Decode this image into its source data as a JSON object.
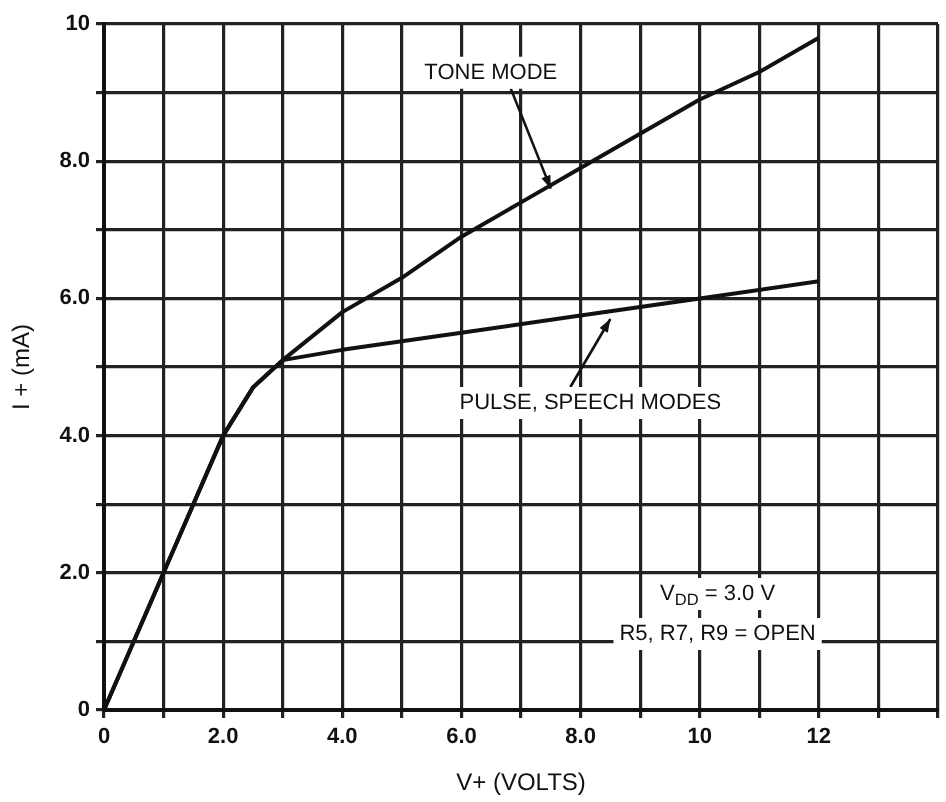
{
  "chart_data": {
    "type": "line",
    "xlabel": "V+ (VOLTS)",
    "ylabel": "I + (mA)",
    "series": [
      {
        "color": "#111111",
        "x": [
          0,
          1,
          2,
          2.5,
          3,
          4,
          5,
          6,
          7,
          8,
          9,
          10,
          11,
          12
        ],
        "values": [
          0,
          2,
          4,
          4.7,
          5.1,
          5.8,
          6.3,
          6.9,
          7.4,
          7.9,
          8.4,
          8.9,
          9.3,
          9.8
        ]
      },
      {
        "color": "#111111",
        "x": [
          0,
          1,
          2,
          2.5,
          3,
          4,
          6,
          8,
          10,
          12
        ],
        "values": [
          0,
          2,
          4,
          4.7,
          5.1,
          5.25,
          5.5,
          5.75,
          6,
          6.25
        ]
      }
    ],
    "xlim": [
      0,
      14
    ],
    "ylim": [
      0,
      10
    ],
    "xticks": [
      0,
      {
        "value": 1,
        "label": null
      },
      {
        "value": 2,
        "label": "2.0"
      },
      {
        "value": 3,
        "label": null
      },
      {
        "value": 4,
        "label": "4.0"
      },
      {
        "value": 5,
        "label": null
      },
      {
        "value": 6,
        "label": "6.0"
      },
      {
        "value": 7,
        "label": null
      },
      {
        "value": 8,
        "label": "8.0"
      },
      {
        "value": 9,
        "label": null
      },
      10,
      {
        "value": 11,
        "label": null
      },
      12,
      {
        "value": 13,
        "label": null
      },
      {
        "value": 14,
        "label": null
      }
    ],
    "yticks": [
      0,
      {
        "value": 1,
        "label": null
      },
      {
        "value": 2,
        "label": "2.0"
      },
      {
        "value": 3,
        "label": null
      },
      {
        "value": 4,
        "label": "4.0"
      },
      {
        "value": 5,
        "label": null
      },
      {
        "value": 6,
        "label": "6.0"
      },
      {
        "value": 7,
        "label": null
      },
      {
        "value": 8,
        "label": "8.0"
      },
      {
        "value": 9,
        "label": null
      },
      10
    ],
    "grid": true,
    "marker": "none",
    "line_style": "solid",
    "annotations": [
      {
        "text": "TONE MODE",
        "x": 7.5,
        "y": 7.6
      },
      {
        "text": "PULSE, SPEECH MODES",
        "x": 8.5,
        "y": 5.7
      },
      "V$_{DD}$ = 3.0 V",
      "R5, R7, R9 = OPEN"
    ]
  }
}
